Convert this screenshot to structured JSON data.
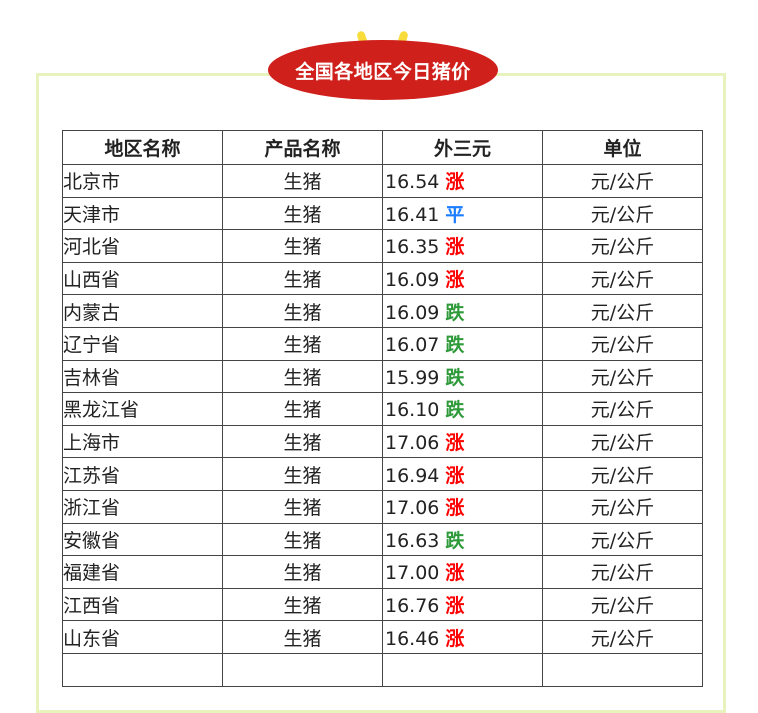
{
  "title": "全国各地区今日猪价",
  "colors": {
    "up": "#ff0000",
    "flat": "#1a7cff",
    "down": "#2e9a3a",
    "badge": "#d0201c",
    "frame": "#e8f2bd"
  },
  "headers": [
    "地区名称",
    "产品名称",
    "外三元",
    "单位"
  ],
  "rows": [
    {
      "region": "北京市",
      "product": "生猪",
      "price": "16.54",
      "trend": "涨",
      "unit": "元/公斤"
    },
    {
      "region": "天津市",
      "product": "生猪",
      "price": "16.41",
      "trend": "平",
      "unit": "元/公斤"
    },
    {
      "region": "河北省",
      "product": "生猪",
      "price": "16.35",
      "trend": "涨",
      "unit": "元/公斤"
    },
    {
      "region": "山西省",
      "product": "生猪",
      "price": "16.09",
      "trend": "涨",
      "unit": "元/公斤"
    },
    {
      "region": "内蒙古",
      "product": "生猪",
      "price": "16.09",
      "trend": "跌",
      "unit": "元/公斤"
    },
    {
      "region": "辽宁省",
      "product": "生猪",
      "price": "16.07",
      "trend": "跌",
      "unit": "元/公斤"
    },
    {
      "region": "吉林省",
      "product": "生猪",
      "price": "15.99",
      "trend": "跌",
      "unit": "元/公斤"
    },
    {
      "region": "黑龙江省",
      "product": "生猪",
      "price": "16.10",
      "trend": "跌",
      "unit": "元/公斤"
    },
    {
      "region": "上海市",
      "product": "生猪",
      "price": "17.06",
      "trend": "涨",
      "unit": "元/公斤"
    },
    {
      "region": "江苏省",
      "product": "生猪",
      "price": "16.94",
      "trend": "涨",
      "unit": "元/公斤"
    },
    {
      "region": "浙江省",
      "product": "生猪",
      "price": "17.06",
      "trend": "涨",
      "unit": "元/公斤"
    },
    {
      "region": "安徽省",
      "product": "生猪",
      "price": "16.63",
      "trend": "跌",
      "unit": "元/公斤"
    },
    {
      "region": "福建省",
      "product": "生猪",
      "price": "17.00",
      "trend": "涨",
      "unit": "元/公斤"
    },
    {
      "region": "江西省",
      "product": "生猪",
      "price": "16.76",
      "trend": "涨",
      "unit": "元/公斤"
    },
    {
      "region": "山东省",
      "product": "生猪",
      "price": "16.46",
      "trend": "涨",
      "unit": "元/公斤"
    }
  ]
}
